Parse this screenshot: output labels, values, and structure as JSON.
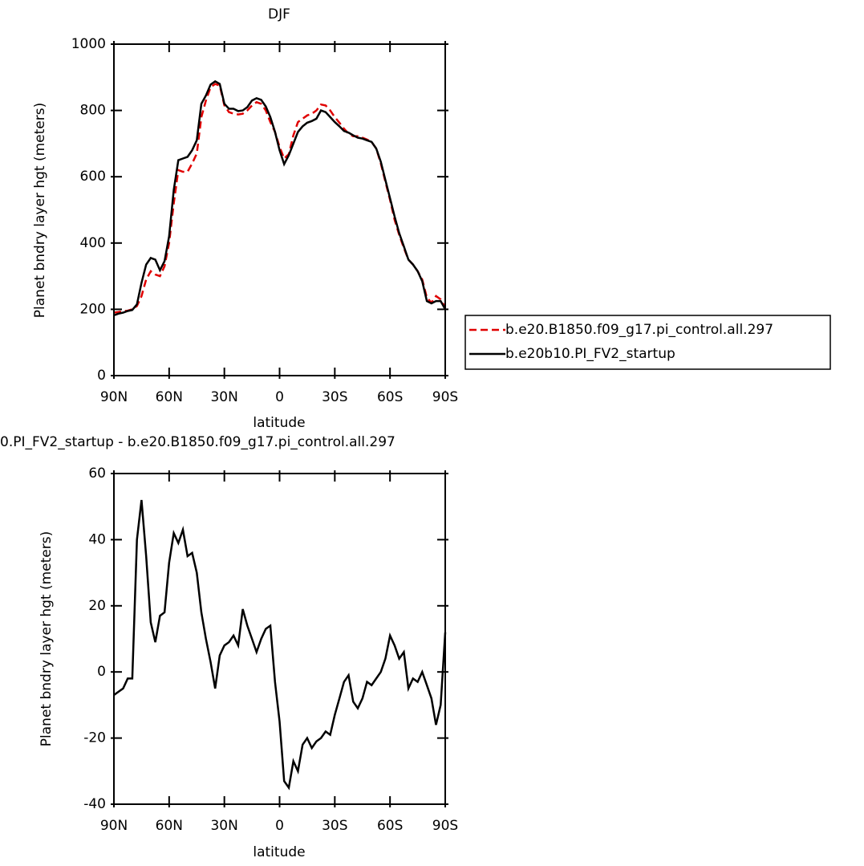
{
  "chart_data": [
    {
      "type": "line",
      "title": "DJF",
      "xlabel": "latitude",
      "ylabel": "Planet bndry layer hgt (meters)",
      "x": [
        90,
        87.5,
        85,
        82.5,
        80,
        77.5,
        75,
        72.5,
        70,
        67.5,
        65,
        62.5,
        60,
        57.5,
        55,
        52.5,
        50,
        47.5,
        45,
        42.5,
        40,
        37.5,
        35,
        32.5,
        30,
        27.5,
        25,
        22.5,
        20,
        17.5,
        15,
        12.5,
        10,
        7.5,
        5,
        2.5,
        0,
        -2.5,
        -5,
        -7.5,
        -10,
        -12.5,
        -15,
        -17.5,
        -20,
        -22.5,
        -25,
        -27.5,
        -30,
        -32.5,
        -35,
        -37.5,
        -40,
        -42.5,
        -45,
        -47.5,
        -50,
        -52.5,
        -55,
        -57.5,
        -60,
        -62.5,
        -65,
        -67.5,
        -70,
        -72.5,
        -75,
        -77.5,
        -80,
        -82.5,
        -85,
        -87.5,
        -90
      ],
      "series": [
        {
          "name": "b.e20.B1850.f09_g17.pi_control.all.297",
          "color": "#e00000",
          "dashed": true,
          "values": [
            190,
            192,
            195,
            196,
            200,
            210,
            240,
            290,
            315,
            305,
            300,
            330,
            400,
            520,
            620,
            615,
            615,
            640,
            670,
            780,
            830,
            870,
            880,
            875,
            815,
            795,
            790,
            788,
            790,
            800,
            815,
            825,
            820,
            800,
            765,
            735,
            690,
            655,
            668,
            725,
            765,
            775,
            785,
            790,
            800,
            818,
            815,
            800,
            780,
            763,
            745,
            730,
            722,
            722,
            718,
            712,
            705,
            685,
            640,
            585,
            530,
            470,
            425,
            385,
            350,
            335,
            315,
            290,
            235,
            220,
            240,
            230,
            205
          ]
        },
        {
          "name": "b.e20b10.PI_FV2_startup",
          "color": "#000000",
          "dashed": false,
          "values": [
            182,
            187,
            190,
            195,
            198,
            215,
            280,
            335,
            355,
            350,
            318,
            345,
            420,
            560,
            650,
            655,
            660,
            680,
            710,
            820,
            845,
            878,
            888,
            880,
            820,
            805,
            805,
            798,
            800,
            810,
            830,
            837,
            832,
            812,
            780,
            735,
            680,
            638,
            665,
            700,
            735,
            752,
            763,
            768,
            775,
            800,
            795,
            780,
            765,
            752,
            738,
            733,
            725,
            718,
            715,
            710,
            705,
            685,
            645,
            590,
            535,
            480,
            430,
            390,
            350,
            335,
            315,
            285,
            225,
            218,
            225,
            225,
            200
          ]
        }
      ],
      "xlim": [
        90,
        -90
      ],
      "xticks": [
        {
          "value": 90,
          "label": "90N"
        },
        {
          "value": 60,
          "label": "60N"
        },
        {
          "value": 30,
          "label": "30N"
        },
        0,
        {
          "value": -30,
          "label": "30S"
        },
        {
          "value": -60,
          "label": "60S"
        },
        {
          "value": -90,
          "label": "90S"
        }
      ],
      "ylim": [
        0,
        1000
      ],
      "yticks": [
        0,
        200,
        400,
        600,
        800,
        1000
      ],
      "legend": "right"
    },
    {
      "type": "line",
      "title": "0.PI_FV2_startup - b.e20.B1850.f09_g17.pi_control.all.297",
      "xlabel": "latitude",
      "ylabel": "Planet bndry layer hgt (meters)",
      "x": [
        90,
        87.5,
        85,
        82.5,
        80,
        77.5,
        75,
        72.5,
        70,
        67.5,
        65,
        62.5,
        60,
        57.5,
        55,
        52.5,
        50,
        47.5,
        45,
        42.5,
        40,
        37.5,
        35,
        32.5,
        30,
        27.5,
        25,
        22.5,
        20,
        17.5,
        15,
        12.5,
        10,
        7.5,
        5,
        2.5,
        0,
        -2.5,
        -5,
        -7.5,
        -10,
        -12.5,
        -15,
        -17.5,
        -20,
        -22.5,
        -25,
        -27.5,
        -30,
        -32.5,
        -35,
        -37.5,
        -40,
        -42.5,
        -45,
        -47.5,
        -50,
        -52.5,
        -55,
        -57.5,
        -60,
        -62.5,
        -65,
        -67.5,
        -70,
        -72.5,
        -75,
        -77.5,
        -80,
        -82.5,
        -85,
        -87.5,
        -90
      ],
      "series": [
        {
          "color": "#000000",
          "dashed": false,
          "values": [
            -7,
            -6,
            -5,
            -2,
            -2,
            40,
            52,
            35,
            15,
            9,
            17,
            18,
            33,
            42,
            39,
            43,
            35,
            36,
            30,
            18,
            10,
            3,
            -5,
            5,
            8,
            9,
            11,
            8,
            19,
            14,
            10,
            6,
            10,
            13,
            14,
            -3,
            -15,
            -33,
            -35,
            -27,
            -30,
            -22,
            -20,
            -23,
            -21,
            -20,
            -18,
            -19,
            -13,
            -8,
            -3,
            -1,
            -9,
            -11,
            -8,
            -3,
            -4,
            -2,
            0,
            4,
            11,
            8,
            4,
            6,
            -5,
            -2,
            -3,
            0,
            -4,
            -8,
            -16,
            -10,
            12
          ]
        }
      ],
      "xlim": [
        90,
        -90
      ],
      "xticks": [
        {
          "value": 90,
          "label": "90N"
        },
        {
          "value": 60,
          "label": "60N"
        },
        {
          "value": 30,
          "label": "30N"
        },
        0,
        {
          "value": -30,
          "label": "30S"
        },
        {
          "value": -60,
          "label": "60S"
        },
        {
          "value": -90,
          "label": "90S"
        }
      ],
      "ylim": [
        -40,
        60
      ],
      "yticks": [
        -40,
        -20,
        0,
        20,
        40,
        60
      ]
    }
  ]
}
